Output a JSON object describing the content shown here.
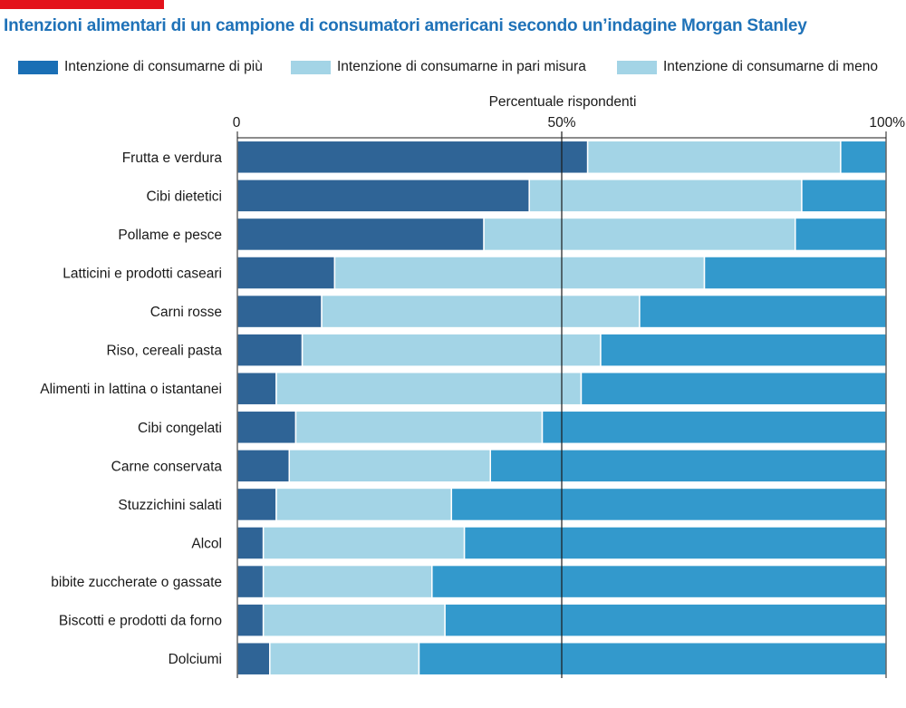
{
  "header": {
    "title": "Intenzioni alimentari di un campione di consumatori americani secondo un’indagine Morgan Stanley"
  },
  "colors": {
    "accent": "#e3121b",
    "title": "#1f72b8",
    "legend": [
      "#1a6fb5",
      "#a3d4e6",
      "#a3d4e6"
    ],
    "bars": [
      "#2f6496",
      "#a3d4e6",
      "#3399cc"
    ]
  },
  "chart_data": {
    "type": "bar",
    "orientation": "horizontal",
    "stacked": true,
    "title": "Intenzioni alimentari di un campione di consumatori americani secondo un’indagine Morgan Stanley",
    "xlabel": "Percentuale rispondenti",
    "ylabel": "",
    "xlim": [
      0,
      100
    ],
    "x_ticks": [
      "0",
      "50%",
      "100%"
    ],
    "reference_line": 50,
    "legend_position": "top",
    "categories": [
      "Frutta e verdura",
      "Cibi dietetici",
      "Pollame e pesce",
      "Latticini e prodotti caseari",
      "Carni rosse",
      "Riso, cereali pasta",
      "Alimenti in lattina o istantanei",
      "Cibi congelati",
      "Carne conservata",
      "Stuzzichini salati",
      "Alcol",
      "bibite zuccherate o gassate",
      "Biscotti e prodotti da forno",
      "Dolciumi"
    ],
    "series": [
      {
        "name": "Intenzione di consumarne di più",
        "values": [
          54,
          45,
          38,
          15,
          13,
          10,
          6,
          9,
          8,
          6,
          4,
          4,
          4,
          5
        ]
      },
      {
        "name": "Intenzione di consumarne in pari misura",
        "values": [
          39,
          42,
          48,
          57,
          49,
          46,
          47,
          38,
          31,
          27,
          31,
          26,
          28,
          23
        ]
      },
      {
        "name": "Intenzione di consumarne di meno",
        "values": [
          7,
          13,
          14,
          28,
          38,
          44,
          47,
          53,
          61,
          67,
          65,
          70,
          68,
          72
        ]
      }
    ]
  }
}
